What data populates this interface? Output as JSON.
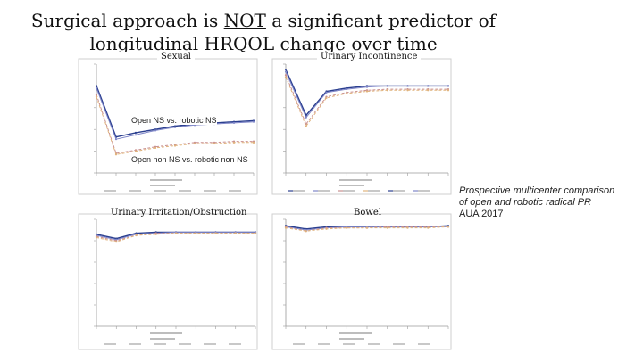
{
  "slide": {
    "title_pre": "Surgical approach is ",
    "title_not": "NOT",
    "title_post": " a significant predictor of",
    "title_line2": "longitudinal HRQOL change over time"
  },
  "panels": {
    "sexual": {
      "title": "Sexual"
    },
    "urinary_incontinence": {
      "title": "Urinary Incontinence"
    },
    "urinary_irritation": {
      "title": "Urinary Irritation/Obstruction"
    },
    "bowel": {
      "title": "Bowel"
    }
  },
  "annotations": {
    "ns": "Open NS vs. robotic NS",
    "non_ns": "Open non NS vs. robotic non NS"
  },
  "note": {
    "line1": "Prospective multicenter comparison",
    "line2": "of open and robotic radical PR",
    "line3": "AUA 2017"
  },
  "colors": {
    "open_ns": "#2b3f8f",
    "robotic_ns": "#7f86c8",
    "open_non_ns": "#c98f8f",
    "robotic_non_ns": "#e0b37d",
    "teal": "#6fb6a8"
  },
  "chart_data": [
    {
      "type": "line",
      "title": "Sexual",
      "x": [
        0,
        1,
        2,
        3,
        4,
        5,
        6,
        7,
        8
      ],
      "series": [
        {
          "name": "Open NS",
          "values": [
            80,
            33,
            37,
            40,
            43,
            45,
            46,
            47,
            48
          ]
        },
        {
          "name": "Robotic NS",
          "values": [
            78,
            31,
            35,
            39,
            42,
            44,
            45,
            46,
            47
          ]
        },
        {
          "name": "Open non NS",
          "values": [
            72,
            18,
            21,
            24,
            26,
            28,
            28,
            29,
            29
          ]
        },
        {
          "name": "Robotic non NS",
          "values": [
            70,
            17,
            20,
            23,
            25,
            27,
            27,
            28,
            28
          ]
        }
      ],
      "ylim": [
        0,
        100
      ]
    },
    {
      "type": "line",
      "title": "Urinary Incontinence",
      "x": [
        0,
        1,
        2,
        3,
        4,
        5,
        6,
        7,
        8
      ],
      "series": [
        {
          "name": "Open NS",
          "values": [
            95,
            53,
            75,
            78,
            80,
            80,
            80,
            80,
            80
          ]
        },
        {
          "name": "Robotic NS",
          "values": [
            93,
            51,
            74,
            77,
            79,
            80,
            80,
            80,
            80
          ]
        },
        {
          "name": "Open non NS",
          "values": [
            90,
            45,
            70,
            74,
            76,
            77,
            77,
            77,
            77
          ]
        },
        {
          "name": "Robotic non NS",
          "values": [
            88,
            43,
            69,
            73,
            75,
            76,
            76,
            76,
            76
          ]
        }
      ],
      "ylim": [
        0,
        100
      ]
    },
    {
      "type": "line",
      "title": "Urinary Irritation/Obstruction",
      "x": [
        0,
        1,
        2,
        3,
        4,
        5,
        6,
        7,
        8
      ],
      "series": [
        {
          "name": "Open NS",
          "values": [
            86,
            82,
            87,
            88,
            88,
            88,
            88,
            88,
            88
          ]
        },
        {
          "name": "Robotic NS",
          "values": [
            85,
            81,
            86,
            87,
            88,
            88,
            88,
            88,
            88
          ]
        },
        {
          "name": "Open non NS",
          "values": [
            84,
            80,
            85,
            87,
            87,
            87,
            87,
            87,
            87
          ]
        },
        {
          "name": "Robotic non NS",
          "values": [
            83,
            79,
            85,
            86,
            87,
            87,
            87,
            87,
            87
          ]
        }
      ],
      "ylim": [
        0,
        100
      ]
    },
    {
      "type": "line",
      "title": "Bowel",
      "x": [
        0,
        1,
        2,
        3,
        4,
        5,
        6,
        7,
        8
      ],
      "series": [
        {
          "name": "Open NS",
          "values": [
            94,
            91,
            93,
            93,
            93,
            93,
            93,
            93,
            94
          ]
        },
        {
          "name": "Robotic NS",
          "values": [
            93,
            90,
            92,
            93,
            93,
            93,
            93,
            93,
            93
          ]
        },
        {
          "name": "Open non NS",
          "values": [
            93,
            89,
            92,
            92,
            92,
            93,
            93,
            93,
            93
          ]
        },
        {
          "name": "Robotic non NS",
          "values": [
            92,
            89,
            91,
            92,
            92,
            92,
            92,
            92,
            93
          ]
        }
      ],
      "ylim": [
        0,
        100
      ]
    }
  ]
}
